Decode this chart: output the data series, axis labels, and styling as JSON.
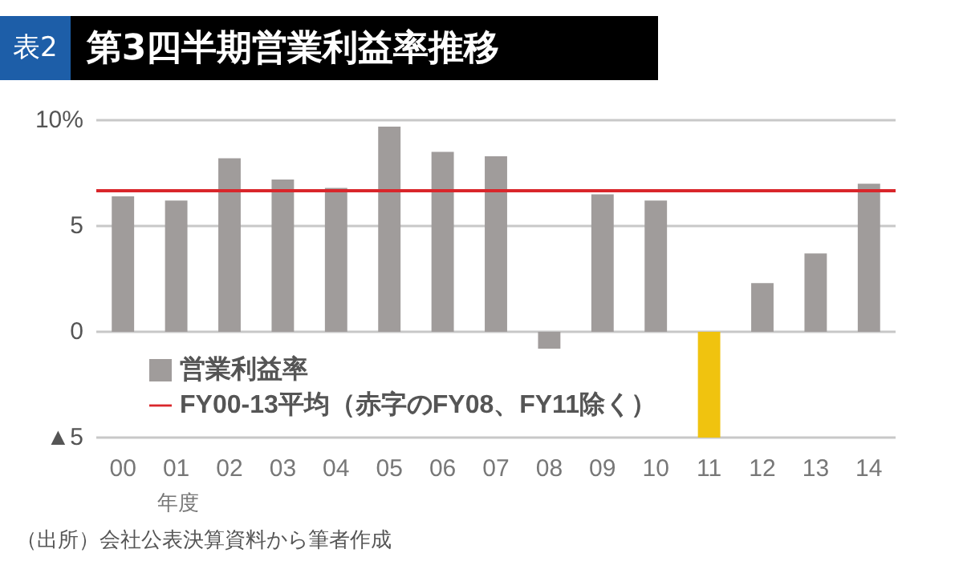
{
  "chart_data": {
    "type": "bar",
    "title": "第3四半期営業利益率推移",
    "subtitle": "表2",
    "xlabel": "年度",
    "categories": [
      "00",
      "01",
      "02",
      "03",
      "04",
      "05",
      "06",
      "07",
      "08",
      "09",
      "10",
      "11",
      "12",
      "13",
      "14"
    ],
    "series": [
      {
        "name": "営業利益率",
        "values": [
          6.4,
          6.2,
          8.2,
          7.2,
          6.8,
          9.7,
          8.5,
          8.3,
          -0.8,
          6.5,
          6.2,
          -5,
          2.3,
          3.7,
          7.0
        ],
        "colors": [
          "#a09c9b",
          "#a09c9b",
          "#a09c9b",
          "#a09c9b",
          "#a09c9b",
          "#a09c9b",
          "#a09c9b",
          "#a09c9b",
          "#a09c9b",
          "#a09c9b",
          "#a09c9b",
          "#f0c30f",
          "#a09c9b",
          "#a09c9b",
          "#a09c9b"
        ]
      }
    ],
    "ylim": [
      -5,
      10
    ],
    "yticks": [
      {
        "value": -5,
        "label": "▲5"
      },
      0,
      5,
      {
        "value": 10,
        "label": "10%"
      }
    ],
    "ref_lines": [
      {
        "axis": "y",
        "value": 6.7,
        "label": "FY00-13平均（赤字のFY08、FY11除く）",
        "color": "#d9262b"
      }
    ],
    "grid": "y",
    "legend": "bottom left",
    "annotations": [
      "（出所）会社公表決算資料から筆者作成"
    ]
  }
}
